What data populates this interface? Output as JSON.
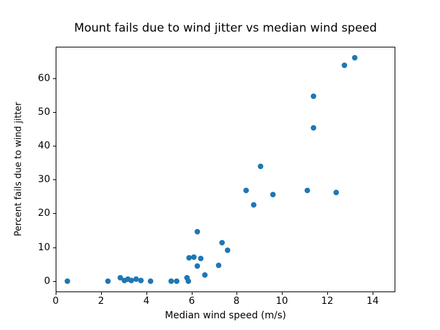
{
  "chart_data": {
    "type": "scatter",
    "title": "Mount fails due to wind jitter vs median wind speed",
    "xlabel": "Median wind speed (m/s)",
    "ylabel": "Percent fails due to wind jitter",
    "marker_color": "#1f77b4",
    "grid": false,
    "legend": null,
    "xlim": [
      0,
      15
    ],
    "ylim": [
      -3.3,
      69.3
    ],
    "xticks": [
      0,
      2,
      4,
      6,
      8,
      10,
      12,
      14
    ],
    "yticks": [
      0,
      10,
      20,
      30,
      40,
      50,
      60
    ],
    "points": [
      [
        0.5,
        0.0
      ],
      [
        2.3,
        0.0
      ],
      [
        2.85,
        1.0
      ],
      [
        3.05,
        0.2
      ],
      [
        3.2,
        0.55
      ],
      [
        3.35,
        0.1
      ],
      [
        3.55,
        0.55
      ],
      [
        3.75,
        0.2
      ],
      [
        4.2,
        0.0
      ],
      [
        5.1,
        0.0
      ],
      [
        5.35,
        0.0
      ],
      [
        5.8,
        0.9
      ],
      [
        5.85,
        0.0
      ],
      [
        5.9,
        6.8
      ],
      [
        6.1,
        7.0
      ],
      [
        6.25,
        4.5
      ],
      [
        6.25,
        14.7
      ],
      [
        6.4,
        6.7
      ],
      [
        6.6,
        1.8
      ],
      [
        7.2,
        4.7
      ],
      [
        7.35,
        11.3
      ],
      [
        7.6,
        9.2
      ],
      [
        8.4,
        26.8
      ],
      [
        8.75,
        22.5
      ],
      [
        9.05,
        34.0
      ],
      [
        9.6,
        25.5
      ],
      [
        11.1,
        26.8
      ],
      [
        11.4,
        45.3
      ],
      [
        11.4,
        54.6
      ],
      [
        12.4,
        26.2
      ],
      [
        12.75,
        63.8
      ],
      [
        13.2,
        66.0
      ]
    ]
  }
}
